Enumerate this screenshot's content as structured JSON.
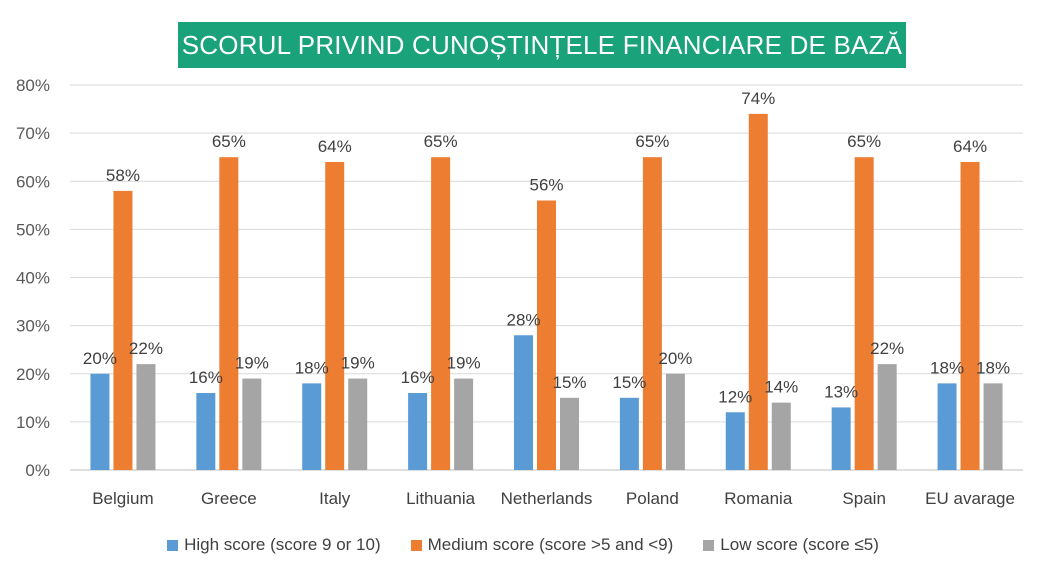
{
  "chart_data": {
    "type": "bar",
    "title": "SCORUL PRIVIND CUNOȘTINȚELE FINANCIARE DE BAZĂ",
    "categories": [
      "Belgium",
      "Greece",
      "Italy",
      "Lithuania",
      "Netherlands",
      "Poland",
      "Romania",
      "Spain",
      "EU avarage"
    ],
    "series": [
      {
        "name": "High score (score 9 or 10)",
        "color": "#5b9bd5",
        "values": [
          20,
          16,
          18,
          16,
          28,
          15,
          12,
          13,
          18
        ]
      },
      {
        "name": "Medium score (score >5 and <9)",
        "color": "#ed7d31",
        "values": [
          58,
          65,
          64,
          65,
          56,
          65,
          74,
          65,
          64
        ]
      },
      {
        "name": "Low score (score ≤5)",
        "color": "#a5a5a5",
        "values": [
          22,
          19,
          19,
          19,
          15,
          20,
          14,
          22,
          18
        ]
      }
    ],
    "ylim": [
      0,
      80
    ],
    "yticks": [
      0,
      10,
      20,
      30,
      40,
      50,
      60,
      70,
      80
    ],
    "value_suffix": "%",
    "grid": true,
    "legend_position": "bottom"
  }
}
